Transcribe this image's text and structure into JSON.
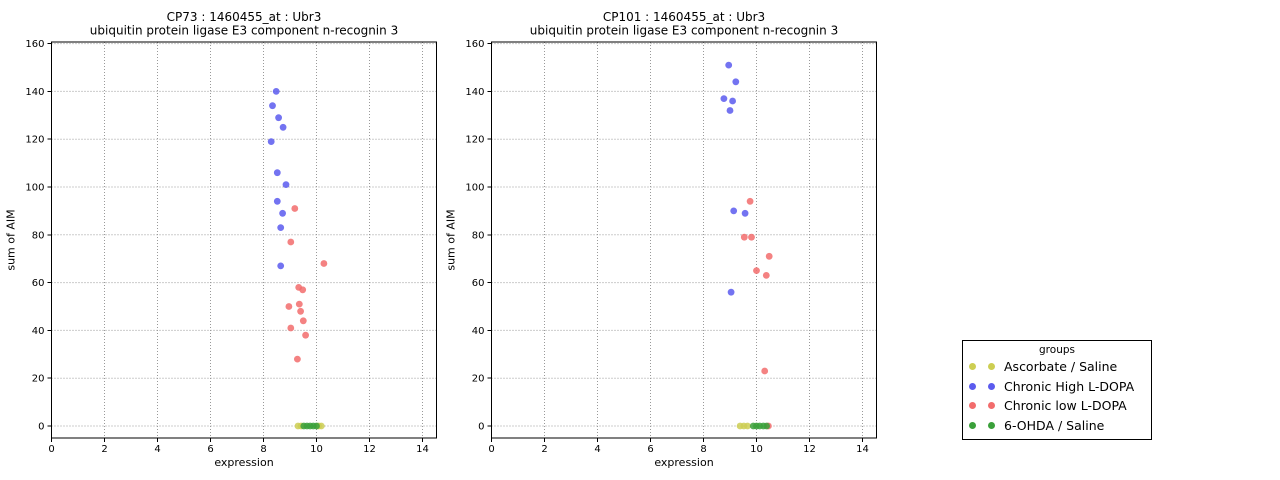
{
  "colors": {
    "background": "#ffffff",
    "axis": "#000000",
    "grid": "#999999"
  },
  "legend": {
    "title": "groups",
    "items": [
      {
        "label": "Ascorbate / Saline",
        "color": "#cdce52"
      },
      {
        "label": "Chronic High L-DOPA",
        "color": "#5b5bee"
      },
      {
        "label": "Chronic low L-DOPA",
        "color": "#f26c6c"
      },
      {
        "label": "6-OHDA / Saline",
        "color": "#3aa03a"
      }
    ]
  },
  "chart_data": [
    {
      "type": "scatter",
      "panel": "CP73",
      "title": "CP73 : 1460455_at : Ubr3",
      "subtitle": "ubiquitin protein ligase E3 component n-recognin 3",
      "xlabel": "expression",
      "ylabel": "sum of AIM",
      "xlim": [
        0,
        14.5
      ],
      "ylim": [
        0,
        160
      ],
      "xticks": [
        0,
        2,
        4,
        6,
        8,
        10,
        12,
        14
      ],
      "yticks": [
        0,
        20,
        40,
        60,
        80,
        100,
        120,
        140,
        160
      ],
      "grid": true,
      "legend_position": "outside-right",
      "series": [
        {
          "name": "Ascorbate / Saline",
          "points": [
            [
              9.3,
              0
            ],
            [
              9.42,
              0
            ],
            [
              10.08,
              0
            ],
            [
              10.18,
              0
            ]
          ]
        },
        {
          "name": "Chronic High L-DOPA",
          "points": [
            [
              8.48,
              140
            ],
            [
              8.34,
              134
            ],
            [
              8.57,
              129
            ],
            [
              8.74,
              125
            ],
            [
              8.29,
              119
            ],
            [
              8.52,
              106
            ],
            [
              8.85,
              101
            ],
            [
              8.52,
              94
            ],
            [
              8.72,
              89
            ],
            [
              8.65,
              83
            ],
            [
              8.65,
              67
            ]
          ]
        },
        {
          "name": "Chronic low L-DOPA",
          "points": [
            [
              9.18,
              91
            ],
            [
              9.03,
              77
            ],
            [
              10.28,
              68
            ],
            [
              9.33,
              58
            ],
            [
              9.48,
              57
            ],
            [
              8.96,
              50
            ],
            [
              9.35,
              51
            ],
            [
              9.4,
              48
            ],
            [
              9.5,
              44
            ],
            [
              9.03,
              41
            ],
            [
              9.59,
              38
            ],
            [
              9.28,
              28
            ]
          ]
        },
        {
          "name": "6-OHDA / Saline",
          "points": [
            [
              9.52,
              0
            ],
            [
              9.64,
              0
            ],
            [
              9.76,
              0
            ],
            [
              9.88,
              0
            ],
            [
              10.0,
              0
            ]
          ]
        }
      ]
    },
    {
      "type": "scatter",
      "panel": "CP101",
      "title": "CP101 : 1460455_at : Ubr3",
      "subtitle": "ubiquitin protein ligase E3 component n-recognin 3",
      "xlabel": "expression",
      "ylabel": "sum of AIM",
      "xlim": [
        0,
        14.5
      ],
      "ylim": [
        0,
        160
      ],
      "xticks": [
        0,
        2,
        4,
        6,
        8,
        10,
        12,
        14
      ],
      "yticks": [
        0,
        20,
        40,
        60,
        80,
        100,
        120,
        140,
        160
      ],
      "grid": true,
      "legend_position": "outside-right",
      "series": [
        {
          "name": "Ascorbate / Saline",
          "points": [
            [
              9.38,
              0
            ],
            [
              9.52,
              0
            ],
            [
              9.66,
              0
            ]
          ]
        },
        {
          "name": "Chronic High L-DOPA",
          "points": [
            [
              8.95,
              151
            ],
            [
              9.22,
              144
            ],
            [
              8.77,
              137
            ],
            [
              9.1,
              136
            ],
            [
              9.0,
              132
            ],
            [
              9.14,
              90
            ],
            [
              9.57,
              89
            ],
            [
              9.04,
              56
            ]
          ]
        },
        {
          "name": "Chronic low L-DOPA",
          "points": [
            [
              9.76,
              94
            ],
            [
              9.54,
              79
            ],
            [
              9.81,
              79
            ],
            [
              10.48,
              71
            ],
            [
              10.0,
              65
            ],
            [
              10.37,
              63
            ],
            [
              10.31,
              23
            ],
            [
              10.45,
              0
            ]
          ]
        },
        {
          "name": "6-OHDA / Saline",
          "points": [
            [
              9.88,
              0
            ],
            [
              10.0,
              0
            ],
            [
              10.12,
              0
            ],
            [
              10.26,
              0
            ],
            [
              10.38,
              0
            ]
          ]
        }
      ]
    }
  ]
}
